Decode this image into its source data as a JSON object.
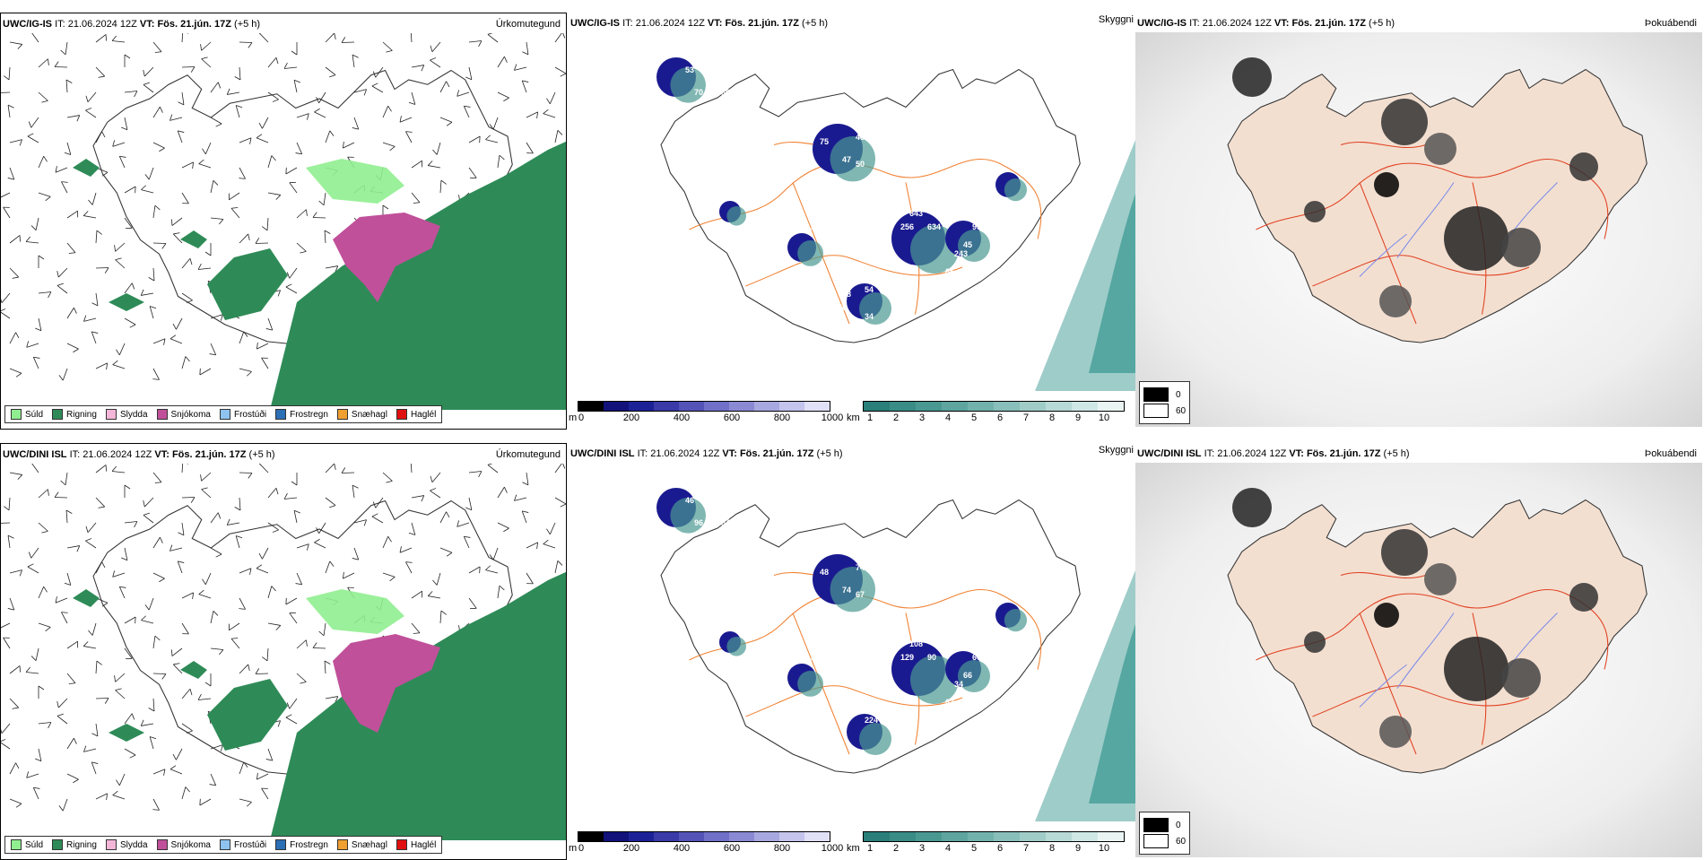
{
  "rows": [
    {
      "model": "UWC/IG-IS",
      "it_label": "IT:",
      "it_value": "21.06.2024 12Z",
      "vt_label": "VT:",
      "vt_value": "Fös. 21.jún. 17Z",
      "lead": "(+5 h)",
      "cloud_labels": [
        "53",
        "70",
        "80",
        "75",
        "48",
        "47",
        "50",
        "108",
        "56",
        "643",
        "256",
        "634",
        "95",
        "45",
        "243",
        "85",
        "251",
        "54",
        "34",
        "76",
        "68"
      ]
    },
    {
      "model": "UWC/DINI ISL",
      "it_label": "IT:",
      "it_value": "21.06.2024 12Z",
      "vt_label": "VT:",
      "vt_value": "Fös. 21.jún. 17Z",
      "lead": "(+5 h)",
      "cloud_labels": [
        "46",
        "96",
        "54",
        "48",
        "74",
        "74",
        "67",
        "287",
        "578",
        "108",
        "129",
        "90",
        "602",
        "66",
        "34",
        "63",
        "228",
        "224"
      ]
    }
  ],
  "panel_kinds": {
    "precip": "Úrkomutegund",
    "cloud": "Skyggni",
    "fog": "Þokuábendi"
  },
  "precip_legend": [
    {
      "label": "Súld",
      "color": "#90ee90"
    },
    {
      "label": "Rigning",
      "color": "#2e8b57"
    },
    {
      "label": "Slydda",
      "color": "#f4b6d8"
    },
    {
      "label": "Snjókoma",
      "color": "#c0509a"
    },
    {
      "label": "Frostúði",
      "color": "#8ec3f0"
    },
    {
      "label": "Frostregn",
      "color": "#2b6fb5"
    },
    {
      "label": "Snæhagl",
      "color": "#f0a030"
    },
    {
      "label": "Haglél",
      "color": "#e01010"
    }
  ],
  "height_scale": {
    "unit": "m",
    "ticks": [
      "0",
      "200",
      "400",
      "600",
      "800",
      "1000"
    ],
    "colors": [
      "#000000",
      "#12127a",
      "#1c2296",
      "#3a3aa8",
      "#5454b8",
      "#7070c8",
      "#8a8ad4",
      "#a8a8e0",
      "#c4c4ec",
      "#e0e0f6"
    ]
  },
  "vis_scale": {
    "unit": "km",
    "ticks": [
      "1",
      "2",
      "3",
      "4",
      "5",
      "6",
      "7",
      "8",
      "9",
      "10"
    ],
    "colors": [
      "#2a7f7a",
      "#3a8c86",
      "#4a9892",
      "#5ea59f",
      "#72b2ac",
      "#88bfba",
      "#a0ccc8",
      "#b8dad6",
      "#d0e8e5",
      "#eaf5f3"
    ]
  },
  "fog_legend": [
    {
      "label": "0",
      "color": "#000000"
    },
    {
      "label": "60",
      "color": "#ffffff"
    }
  ],
  "colors": {
    "rain": "#2e8b57",
    "drizzle": "#90ee90",
    "snow": "#c0509a",
    "sleet": "#f4b6d8",
    "road": "#f08030",
    "river": "#7a8ce8",
    "land_fog": "#f3dfd0",
    "sea_vis": "#4ea39c"
  }
}
